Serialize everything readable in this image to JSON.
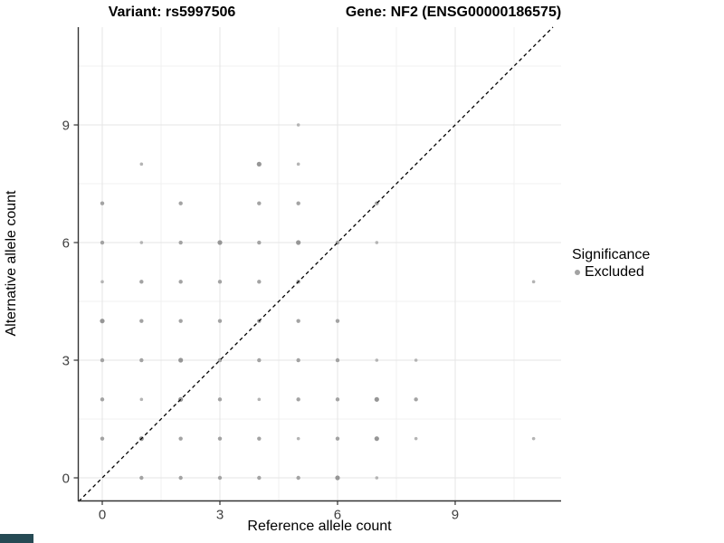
{
  "chart_data": {
    "type": "scatter",
    "title_left": "Variant: rs5997506",
    "title_right": "Gene: NF2 (ENSG00000186575)",
    "xlabel": "Reference allele count",
    "ylabel": "Alternative allele count",
    "x_ticks": [
      0,
      3,
      6,
      9
    ],
    "y_ticks": [
      0,
      3,
      6,
      9
    ],
    "minor_gridlines": [
      1.5,
      4.5,
      7.5,
      10.5
    ],
    "xlim": [
      -0.6,
      11.7
    ],
    "ylim": [
      -0.6,
      11.5
    ],
    "identity_line": {
      "type": "dashed",
      "color": "#000000",
      "meaning": "y = x"
    },
    "legend": {
      "title": "Significance",
      "items": [
        {
          "label": "Excluded",
          "color": "#a3a3a3"
        }
      ]
    },
    "point_classes": {
      "s": {
        "r": 1.8,
        "color": "#b4b4b4"
      },
      "m": {
        "r": 2.2,
        "color": "#a3a3a3"
      },
      "l": {
        "r": 2.6,
        "color": "#969696"
      }
    },
    "points": [
      [
        1,
        0,
        "m"
      ],
      [
        2,
        0,
        "m"
      ],
      [
        3,
        0,
        "m"
      ],
      [
        4,
        0,
        "m"
      ],
      [
        5,
        0,
        "m"
      ],
      [
        6,
        0,
        "l"
      ],
      [
        7,
        0,
        "s"
      ],
      [
        0,
        1,
        "m"
      ],
      [
        1,
        1,
        "l"
      ],
      [
        2,
        1,
        "m"
      ],
      [
        3,
        1,
        "m"
      ],
      [
        4,
        1,
        "m"
      ],
      [
        5,
        1,
        "s"
      ],
      [
        6,
        1,
        "m"
      ],
      [
        7,
        1,
        "l"
      ],
      [
        8,
        1,
        "s"
      ],
      [
        11,
        1,
        "s"
      ],
      [
        0,
        2,
        "m"
      ],
      [
        1,
        2,
        "s"
      ],
      [
        2,
        2,
        "l"
      ],
      [
        3,
        2,
        "m"
      ],
      [
        4,
        2,
        "s"
      ],
      [
        5,
        2,
        "m"
      ],
      [
        6,
        2,
        "m"
      ],
      [
        7,
        2,
        "l"
      ],
      [
        8,
        2,
        "m"
      ],
      [
        0,
        3,
        "m"
      ],
      [
        1,
        3,
        "m"
      ],
      [
        2,
        3,
        "l"
      ],
      [
        3,
        3,
        "m"
      ],
      [
        4,
        3,
        "m"
      ],
      [
        5,
        3,
        "m"
      ],
      [
        6,
        3,
        "m"
      ],
      [
        7,
        3,
        "s"
      ],
      [
        8,
        3,
        "s"
      ],
      [
        0,
        4,
        "l"
      ],
      [
        1,
        4,
        "m"
      ],
      [
        2,
        4,
        "m"
      ],
      [
        3,
        4,
        "m"
      ],
      [
        4,
        4,
        "m"
      ],
      [
        5,
        4,
        "m"
      ],
      [
        6,
        4,
        "m"
      ],
      [
        0,
        5,
        "s"
      ],
      [
        1,
        5,
        "m"
      ],
      [
        2,
        5,
        "m"
      ],
      [
        3,
        5,
        "m"
      ],
      [
        4,
        5,
        "m"
      ],
      [
        5,
        5,
        "m"
      ],
      [
        11,
        5,
        "s"
      ],
      [
        0,
        6,
        "m"
      ],
      [
        1,
        6,
        "s"
      ],
      [
        2,
        6,
        "m"
      ],
      [
        3,
        6,
        "l"
      ],
      [
        4,
        6,
        "m"
      ],
      [
        5,
        6,
        "l"
      ],
      [
        6,
        6,
        "m"
      ],
      [
        7,
        6,
        "s"
      ],
      [
        0,
        7,
        "m"
      ],
      [
        2,
        7,
        "m"
      ],
      [
        4,
        7,
        "m"
      ],
      [
        5,
        7,
        "m"
      ],
      [
        7,
        7,
        "m"
      ],
      [
        1,
        8,
        "s"
      ],
      [
        4,
        8,
        "l"
      ],
      [
        5,
        8,
        "s"
      ],
      [
        5,
        9,
        "s"
      ]
    ],
    "colors": {
      "grid_major": "#e5e5e5",
      "grid_minor": "#f1f1f1",
      "axis_line": "#333333",
      "tick_label": "#404040",
      "corner_bar": "#264a54"
    }
  }
}
